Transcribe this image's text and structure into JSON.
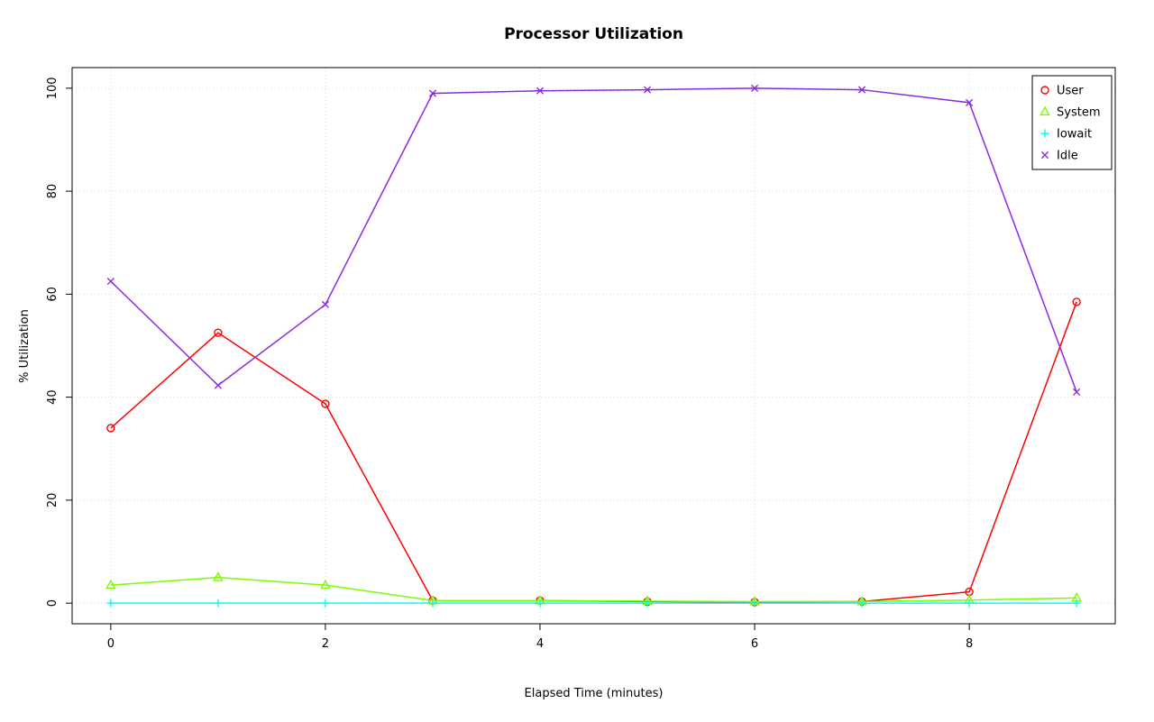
{
  "title": "Processor Utilization",
  "chart_data": {
    "type": "line",
    "title": "Processor Utilization",
    "xlabel": "Elapsed Time (minutes)",
    "ylabel": "% Utilization",
    "x": [
      0,
      1,
      2,
      3,
      4,
      5,
      6,
      7,
      8,
      9
    ],
    "xlim": [
      0,
      9
    ],
    "ylim": [
      0,
      100
    ],
    "xticks": [
      0,
      2,
      4,
      6,
      8
    ],
    "yticks": [
      0,
      20,
      40,
      60,
      80,
      100
    ],
    "grid": true,
    "grid_style": "dotted",
    "grid_color": "#DCDCDC",
    "legend_position": "top-right",
    "series": [
      {
        "name": "User",
        "color": "#FF0000",
        "marker": "circle",
        "values": [
          34,
          52.5,
          38.7,
          0.5,
          0.5,
          0.3,
          0.2,
          0.3,
          2.2,
          58.5
        ]
      },
      {
        "name": "System",
        "color": "#7CFC00",
        "marker": "triangle",
        "values": [
          3.5,
          5,
          3.5,
          0.5,
          0.5,
          0.4,
          0.3,
          0.3,
          0.6,
          1
        ]
      },
      {
        "name": "Iowait",
        "color": "#00FFFF",
        "marker": "plus",
        "values": [
          0,
          0,
          0,
          0,
          0,
          0,
          0,
          0,
          0,
          0
        ]
      },
      {
        "name": "Idle",
        "color": "#8A2BE2",
        "marker": "x",
        "values": [
          62.5,
          42.3,
          58,
          99,
          99.5,
          99.7,
          100,
          99.7,
          97.2,
          41
        ]
      }
    ]
  }
}
